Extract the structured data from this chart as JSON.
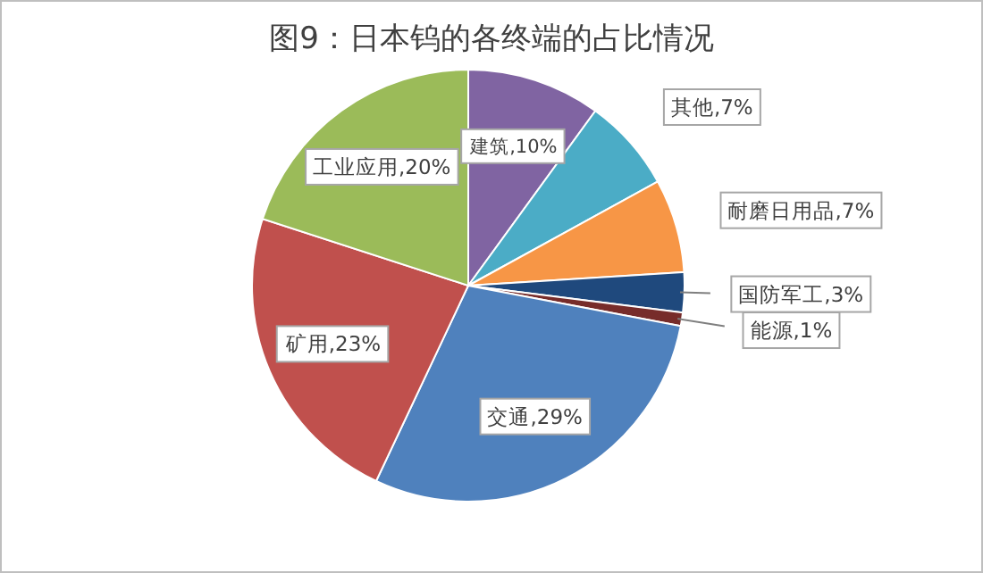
{
  "chart_data": {
    "type": "pie",
    "title": "图9：日本钨的各终端的占比情况",
    "categories": [
      "建筑",
      "其他",
      "耐磨日用品",
      "国防军工",
      "能源",
      "交通",
      "矿用",
      "工业应用"
    ],
    "values": [
      10,
      7,
      7,
      3,
      1,
      29,
      23,
      20
    ],
    "value_labels": [
      "10%",
      "7%",
      "7%",
      "3%",
      "1%",
      "29%",
      "23%",
      "20%"
    ],
    "colors": [
      "#8064a2",
      "#4bacc6",
      "#f79646",
      "#1f497d",
      "#772c2a",
      "#4f81bd",
      "#c0504d",
      "#9bbb59"
    ],
    "legend": false
  }
}
